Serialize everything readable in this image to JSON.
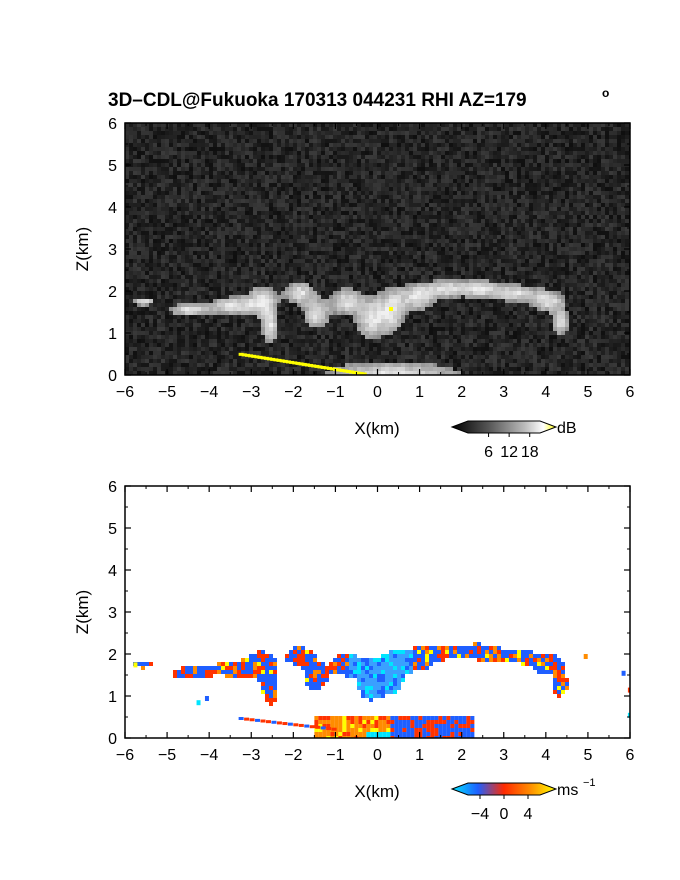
{
  "chart_data": [
    {
      "type": "heatmap",
      "title": "3D–CDL@Fukuoka 170313 044231 RHI AZ=179",
      "title_superscript": "o",
      "xlabel": "X(km)",
      "ylabel": "Z(km)",
      "xlim": [
        -6,
        6
      ],
      "ylim": [
        0,
        6
      ],
      "x_ticks": [
        "−6",
        "−5",
        "−4",
        "−3",
        "−2",
        "−1",
        "0",
        "1",
        "2",
        "3",
        "4",
        "5",
        "6"
      ],
      "y_ticks": [
        "0",
        "1",
        "2",
        "3",
        "4",
        "5",
        "6"
      ],
      "colorbar": {
        "unit": "dB",
        "ticks": [
          "6",
          "12",
          "18"
        ],
        "range": [
          0,
          21
        ],
        "colors": [
          "#000000",
          "#555555",
          "#aaaaaa",
          "#ffffff",
          "#ffff00"
        ]
      },
      "background_color": "#1c1c1c",
      "cloud_color": "#d8d8d8",
      "strong_echo_color": "#ffff00",
      "strong_echo_threshold_db": 18
    },
    {
      "type": "heatmap",
      "title": "",
      "xlabel": "X(km)",
      "ylabel": "Z(km)",
      "xlim": [
        -6,
        6
      ],
      "ylim": [
        0,
        6
      ],
      "x_ticks": [
        "−6",
        "−5",
        "−4",
        "−3",
        "−2",
        "−1",
        "0",
        "1",
        "2",
        "3",
        "4",
        "5",
        "6"
      ],
      "y_ticks": [
        "0",
        "1",
        "2",
        "3",
        "4",
        "5",
        "6"
      ],
      "colorbar": {
        "unit": "ms",
        "unit_superscript": "−1",
        "ticks": [
          "−4",
          "0",
          "4"
        ],
        "range": [
          -6,
          6
        ],
        "colors": [
          "#00e5ff",
          "#1f5fff",
          "#ff2a00",
          "#ff8c00",
          "#ffff00"
        ]
      },
      "dominant_colors": {
        "towards": "#1f5fff",
        "away": "#ff3300",
        "weak": "#ff8c00",
        "strong": "#ffff00"
      }
    }
  ]
}
